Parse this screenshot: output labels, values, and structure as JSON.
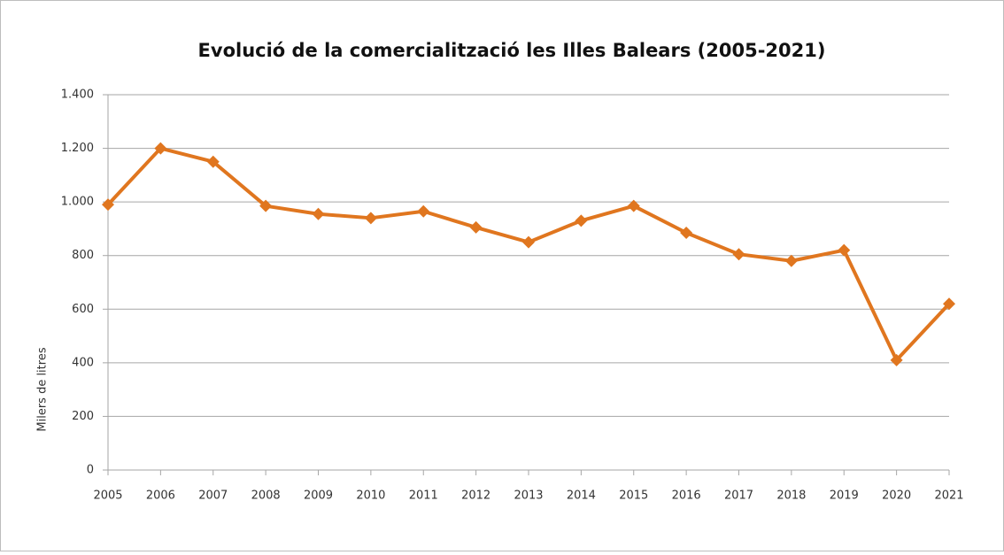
{
  "chart_data": {
    "type": "line",
    "title": "Evolució de la comercialització les Illes Balears (2005-2021)",
    "y_label": "Milers de litres",
    "categories": [
      "2005",
      "2006",
      "2007",
      "2008",
      "2009",
      "2010",
      "2011",
      "2012",
      "2013",
      "2014",
      "2015",
      "2016",
      "2017",
      "2018",
      "2019",
      "2020",
      "2021"
    ],
    "values": [
      990,
      1200,
      1150,
      985,
      955,
      940,
      965,
      905,
      850,
      930,
      985,
      885,
      805,
      780,
      820,
      410,
      620
    ],
    "color": "#e0761f",
    "ylim": [
      0,
      1400
    ],
    "yticks": [
      0,
      200,
      400,
      600,
      800,
      {
        "value": 1000,
        "label": "1.000"
      },
      {
        "value": 1200,
        "label": "1.200"
      },
      {
        "value": 1400,
        "label": "1.400"
      }
    ],
    "grid": true
  }
}
